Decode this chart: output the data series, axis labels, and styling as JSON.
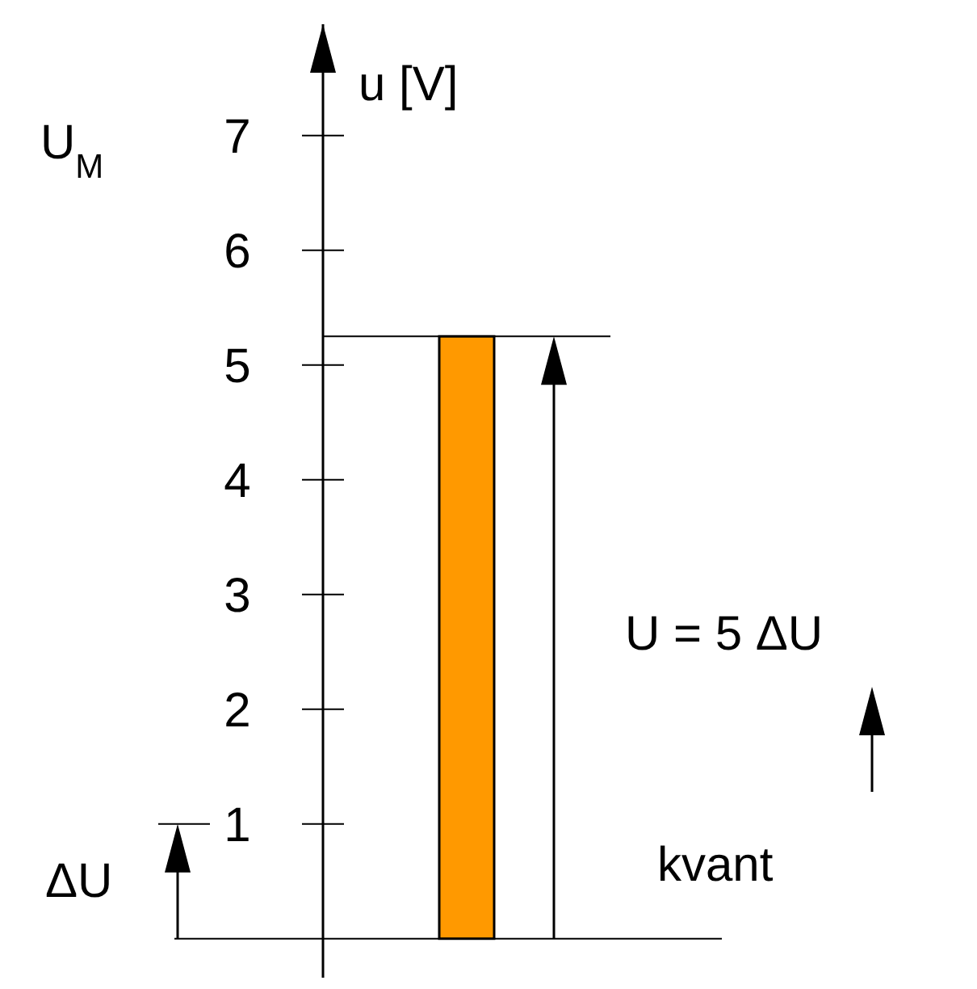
{
  "chart_data": {
    "type": "bar",
    "ylabel": "u [V]",
    "categories": [
      null
    ],
    "values": [
      5.25
    ],
    "color": "#ff9900",
    "ylim": [
      -0.34,
      7.97
    ],
    "yticks": [
      1,
      2,
      3,
      4,
      5,
      6,
      7
    ],
    "ref_lines": [
      {
        "axis": "y",
        "value": 5.25
      },
      {
        "axis": "y",
        "value": 1,
        "label": "ΔU"
      }
    ],
    "annotations": [
      "U$_{M}$",
      "U = 5 ΔU",
      "kvant"
    ]
  }
}
